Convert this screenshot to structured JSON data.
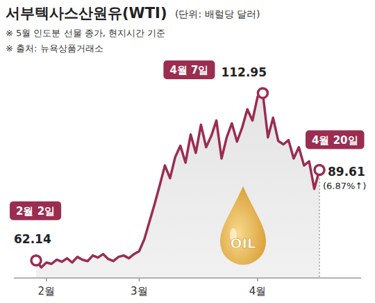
{
  "chart_data": {
    "type": "line",
    "title": "서부텍사스산원유(WTI)",
    "subtitle": "(단위: 배럴당 달러)",
    "notes": [
      "※ 5월 인도분 선물 종가, 현지시간 기준",
      "※ 출처: 뉴욕상품거래소"
    ],
    "icon_label": "OIL",
    "annotation": "(6.87%↑)",
    "color": "#9a2d50",
    "categories": [
      null,
      null,
      "2월",
      null,
      null,
      null,
      null,
      null,
      null,
      null,
      null,
      null,
      null,
      null,
      null,
      null,
      null,
      null,
      null,
      null,
      "3월",
      null,
      null,
      null,
      null,
      null,
      null,
      null,
      null,
      null,
      null,
      null,
      null,
      null,
      null,
      null,
      null,
      null,
      null,
      null,
      null,
      null,
      null,
      "4월",
      null,
      null,
      null,
      null,
      null,
      null,
      null,
      null,
      null,
      null,
      null,
      null
    ],
    "values": [
      62.14,
      60.01,
      61.5,
      61.07,
      62.35,
      61.71,
      62.78,
      61.5,
      63.21,
      62.35,
      61.93,
      63.63,
      62.99,
      64.06,
      62.57,
      61.93,
      63.21,
      63.63,
      62.78,
      64.06,
      64.92,
      68.54,
      73.88,
      79.22,
      84.98,
      90.96,
      87.12,
      93.52,
      96.94,
      91.82,
      100.36,
      94.8,
      103.34,
      96.51,
      99.93,
      104.62,
      93.1,
      99.5,
      103.77,
      98.22,
      102.49,
      108.04,
      104.62,
      111.88,
      112.95,
      99.5,
      105.48,
      98.43,
      97.37,
      98.65,
      93.1,
      96.51,
      90.96,
      92.24,
      83.85,
      89.61
    ],
    "point_labels": [
      "2월 2일",
      null,
      null,
      null,
      null,
      null,
      null,
      null,
      null,
      null,
      null,
      null,
      null,
      null,
      null,
      null,
      null,
      null,
      null,
      null,
      null,
      null,
      null,
      null,
      null,
      null,
      null,
      null,
      null,
      null,
      null,
      null,
      null,
      null,
      null,
      null,
      null,
      null,
      null,
      null,
      null,
      null,
      null,
      null,
      "4월 7일",
      null,
      null,
      null,
      null,
      null,
      null,
      null,
      null,
      null,
      null,
      "4월 20일"
    ],
    "value_labels": [
      "62.14",
      null,
      null,
      null,
      null,
      null,
      null,
      null,
      null,
      null,
      null,
      null,
      null,
      null,
      null,
      null,
      null,
      null,
      null,
      null,
      null,
      null,
      null,
      null,
      null,
      null,
      null,
      null,
      null,
      null,
      null,
      null,
      null,
      null,
      null,
      null,
      null,
      null,
      null,
      null,
      null,
      null,
      null,
      null,
      "112.95",
      null,
      null,
      null,
      null,
      null,
      null,
      null,
      null,
      null,
      null,
      "89.61"
    ],
    "ylim": [
      56.8,
      118
    ],
    "grid": false,
    "tick_labels": "x",
    "marker": "circle"
  }
}
